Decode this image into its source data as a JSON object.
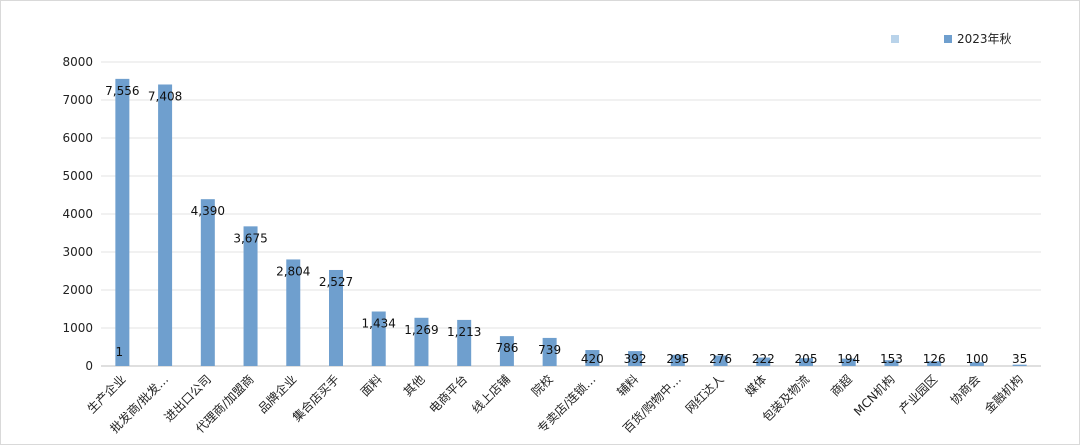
{
  "chart_data": {
    "type": "bar",
    "categories": [
      "生产企业",
      "批发商/批发…",
      "进出口公司",
      "代理商/加盟商",
      "品牌企业",
      "集合店买手",
      "面料",
      "其他",
      "电商平台",
      "线上店铺",
      "院校",
      "专卖店/连锁…",
      "辅料",
      "百货/购物中…",
      "网红达人",
      "媒体",
      "包装及物流",
      "商超",
      "MCN机构",
      "产业园区",
      "协商会",
      "金融机构"
    ],
    "series": [
      {
        "name": "2023年秋",
        "values": [
          7556,
          7408,
          4390,
          3675,
          2804,
          2527,
          1434,
          1269,
          1213,
          786,
          739,
          420,
          392,
          295,
          276,
          222,
          205,
          194,
          153,
          126,
          100,
          35
        ],
        "labels": [
          "7,556",
          "7,408",
          "4,390",
          "3,675",
          "2,804",
          "2,527",
          "1,434",
          "1,269",
          "1,213",
          "786",
          "739",
          "420",
          "392",
          "295",
          "276",
          "222",
          "205",
          "194",
          "153",
          "126",
          "100",
          "35"
        ],
        "color": "#6f9fce"
      }
    ],
    "extra_labels": [
      {
        "category": "生产企业",
        "text": "1"
      }
    ],
    "ylim": [
      0,
      8000
    ],
    "yticks": [
      0,
      1000,
      2000,
      3000,
      4000,
      5000,
      6000,
      7000,
      8000
    ],
    "grid": true,
    "legend": {
      "placement": "top-right",
      "entries": [
        {
          "name": "",
          "color": "#b9d3ea"
        },
        {
          "name": "2023年秋",
          "color": "#6f9fce"
        }
      ]
    }
  }
}
